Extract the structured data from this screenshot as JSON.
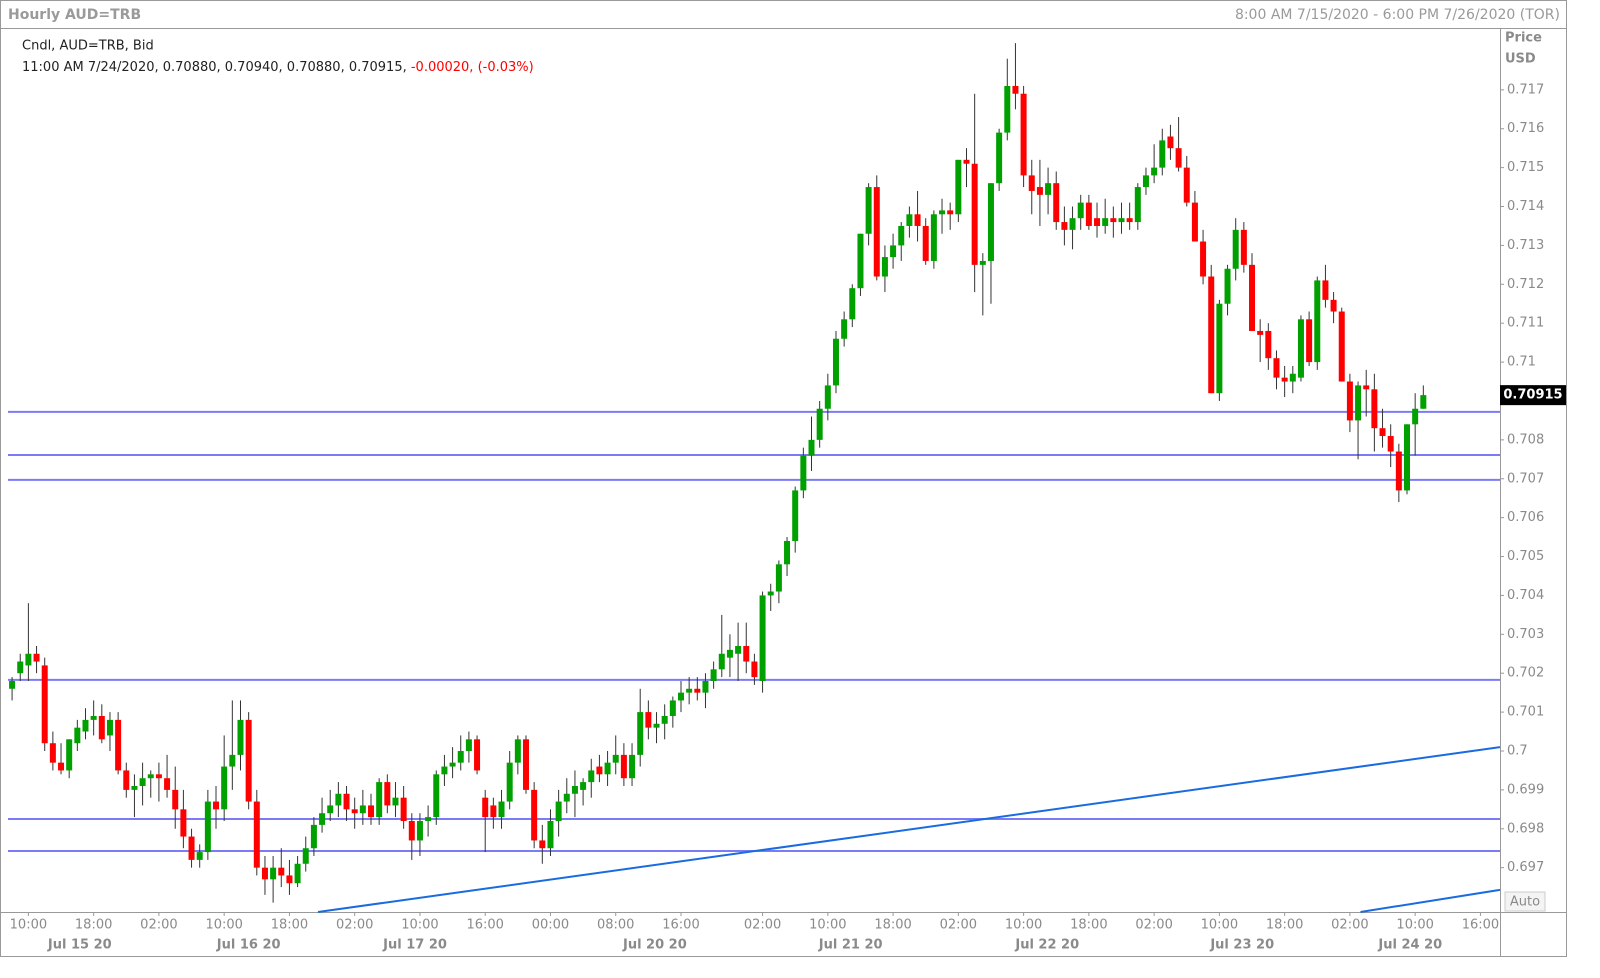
{
  "chart_data": {
    "type": "candlestick",
    "title": "Hourly AUD=TRB",
    "range_text": "8:00 AM 7/15/2020 - 6:00 PM 7/26/2020 (TOR)",
    "series_label": "Cndl, AUD=TRB, Bid",
    "info_text": "11:00 AM 7/24/2020, 0.70880, 0.70940, 0.70880, 0.70915,",
    "change_text": "-0.00020, (-0.03%)",
    "y_axis_label": [
      "Price",
      "USD"
    ],
    "auto_label": "Auto",
    "up_color": "#00a000",
    "down_color": "#ff0000",
    "line_color": "#7b7bf7",
    "trend_color": "#1a6be0",
    "xlim": [
      -0.5,
      182.4
    ],
    "ylim": [
      0.69586,
      0.71859
    ],
    "yticks": [
      0.697,
      0.698,
      0.699,
      0.7,
      0.701,
      0.702,
      0.703,
      0.704,
      0.705,
      0.706,
      0.707,
      0.708,
      0.71,
      0.711,
      0.712,
      0.713,
      0.714,
      0.715,
      0.716,
      0.717
    ],
    "current_price": 0.70915,
    "xticks": [
      {
        "value": 2,
        "label": "10:00"
      },
      {
        "value": 10,
        "label": "18:00"
      },
      {
        "value": 18,
        "label": "02:00"
      },
      {
        "value": 26,
        "label": "10:00"
      },
      {
        "value": 34,
        "label": "18:00"
      },
      {
        "value": 42,
        "label": "02:00"
      },
      {
        "value": 50,
        "label": "10:00"
      },
      {
        "value": 58,
        "label": "16:00"
      },
      {
        "value": 66,
        "label": "00:00"
      },
      {
        "value": 74,
        "label": "08:00"
      },
      {
        "value": 82,
        "label": "16:00"
      },
      {
        "value": 92,
        "label": "02:00"
      },
      {
        "value": 100,
        "label": "10:00"
      },
      {
        "value": 108,
        "label": "18:00"
      },
      {
        "value": 116,
        "label": "02:00"
      },
      {
        "value": 124,
        "label": "10:00"
      },
      {
        "value": 132,
        "label": "18:00"
      },
      {
        "value": 140,
        "label": "02:00"
      },
      {
        "value": 148,
        "label": "10:00"
      },
      {
        "value": 156,
        "label": "18:00"
      },
      {
        "value": 164,
        "label": "02:00"
      },
      {
        "value": 172,
        "label": "10:00"
      },
      {
        "value": 180,
        "label": "16:00"
      }
    ],
    "date_ticks": [
      {
        "value": 8.3,
        "label": "Jul 15 20"
      },
      {
        "value": 29,
        "label": "Jul 16 20"
      },
      {
        "value": 49.4,
        "label": "Jul 17 20"
      },
      {
        "value": 78.8,
        "label": "Jul 20 20"
      },
      {
        "value": 102.8,
        "label": "Jul 21 20"
      },
      {
        "value": 126.9,
        "label": "Jul 22 20"
      },
      {
        "value": 150.8,
        "label": "Jul 23 20"
      },
      {
        "value": 171.4,
        "label": "Jul 24 20"
      }
    ],
    "hlines": [
      0.70872,
      0.70761,
      0.70697,
      0.70183,
      0.69825,
      0.69743
    ],
    "trendlines": [
      [
        [
          37.5,
          0.69586
        ],
        [
          182.4,
          0.7001
        ]
      ],
      [
        [
          165.3,
          0.69586
        ],
        [
          182.4,
          0.69643
        ]
      ]
    ],
    "candles": [
      [
        0.7016,
        0.7019,
        0.7013,
        0.7018
      ],
      [
        0.702,
        0.7025,
        0.7018,
        0.7023
      ],
      [
        0.7022,
        0.7038,
        0.7018,
        0.7025
      ],
      [
        0.7025,
        0.7027,
        0.702,
        0.7023
      ],
      [
        0.7022,
        0.7024,
        0.7,
        0.7002
      ],
      [
        0.7002,
        0.7005,
        0.6995,
        0.6997
      ],
      [
        0.6997,
        0.7002,
        0.6994,
        0.6995
      ],
      [
        0.6995,
        0.7003,
        0.6993,
        0.7003
      ],
      [
        0.7002,
        0.7008,
        0.7,
        0.7006
      ],
      [
        0.7005,
        0.7011,
        0.7003,
        0.7008
      ],
      [
        0.7008,
        0.7013,
        0.7004,
        0.7009
      ],
      [
        0.7009,
        0.7012,
        0.7002,
        0.7003
      ],
      [
        0.7004,
        0.701,
        0.7,
        0.7008
      ],
      [
        0.7008,
        0.701,
        0.6994,
        0.6995
      ],
      [
        0.6995,
        0.6997,
        0.6988,
        0.699
      ],
      [
        0.699,
        0.6994,
        0.6983,
        0.6991
      ],
      [
        0.6991,
        0.6997,
        0.6986,
        0.6993
      ],
      [
        0.6993,
        0.6995,
        0.6988,
        0.6994
      ],
      [
        0.6994,
        0.6997,
        0.6987,
        0.6993
      ],
      [
        0.6993,
        0.6999,
        0.6988,
        0.699
      ],
      [
        0.699,
        0.6996,
        0.698,
        0.6985
      ],
      [
        0.6985,
        0.699,
        0.6975,
        0.6978
      ],
      [
        0.6978,
        0.698,
        0.697,
        0.6972
      ],
      [
        0.6972,
        0.6976,
        0.697,
        0.6974
      ],
      [
        0.6974,
        0.699,
        0.6972,
        0.6987
      ],
      [
        0.6987,
        0.6991,
        0.698,
        0.6985
      ],
      [
        0.6985,
        0.7004,
        0.6982,
        0.6996
      ],
      [
        0.6996,
        0.7013,
        0.699,
        0.6999
      ],
      [
        0.6999,
        0.7013,
        0.6995,
        0.7008
      ],
      [
        0.7008,
        0.701,
        0.6985,
        0.6987
      ],
      [
        0.6987,
        0.699,
        0.6968,
        0.697
      ],
      [
        0.697,
        0.6973,
        0.6963,
        0.6967
      ],
      [
        0.6967,
        0.6973,
        0.6961,
        0.697
      ],
      [
        0.697,
        0.6975,
        0.6965,
        0.6968
      ],
      [
        0.6968,
        0.6972,
        0.6963,
        0.6966
      ],
      [
        0.6966,
        0.6973,
        0.6965,
        0.6971
      ],
      [
        0.6971,
        0.6978,
        0.6969,
        0.6975
      ],
      [
        0.6975,
        0.6983,
        0.6973,
        0.6981
      ],
      [
        0.6981,
        0.6988,
        0.6979,
        0.6984
      ],
      [
        0.6984,
        0.699,
        0.6982,
        0.6986
      ],
      [
        0.6986,
        0.6992,
        0.6983,
        0.6989
      ],
      [
        0.6989,
        0.6991,
        0.6982,
        0.6985
      ],
      [
        0.6985,
        0.6988,
        0.698,
        0.6984
      ],
      [
        0.6984,
        0.699,
        0.6981,
        0.6986
      ],
      [
        0.6986,
        0.6989,
        0.6981,
        0.6983
      ],
      [
        0.6983,
        0.6993,
        0.6981,
        0.6992
      ],
      [
        0.6992,
        0.6994,
        0.6984,
        0.6986
      ],
      [
        0.6986,
        0.6992,
        0.6983,
        0.6988
      ],
      [
        0.6988,
        0.6991,
        0.698,
        0.6982
      ],
      [
        0.6982,
        0.6984,
        0.6972,
        0.6977
      ],
      [
        0.6977,
        0.6984,
        0.6973,
        0.6982
      ],
      [
        0.6982,
        0.6986,
        0.6978,
        0.6983
      ],
      [
        0.6983,
        0.6995,
        0.6981,
        0.6994
      ],
      [
        0.6994,
        0.6999,
        0.6991,
        0.6996
      ],
      [
        0.6996,
        0.7001,
        0.6993,
        0.6997
      ],
      [
        0.6997,
        0.7004,
        0.6995,
        0.7
      ],
      [
        0.7,
        0.7005,
        0.6997,
        0.7003
      ],
      [
        0.7003,
        0.7004,
        0.6994,
        0.6995
      ],
      [
        0.6988,
        0.699,
        0.6974,
        0.6983
      ],
      [
        0.6986,
        0.6988,
        0.698,
        0.6983
      ],
      [
        0.6983,
        0.699,
        0.698,
        0.6987
      ],
      [
        0.6987,
        0.7,
        0.6985,
        0.6997
      ],
      [
        0.6997,
        0.7004,
        0.6994,
        0.7003
      ],
      [
        0.7003,
        0.7004,
        0.6989,
        0.699
      ],
      [
        0.699,
        0.6992,
        0.6975,
        0.6977
      ],
      [
        0.6977,
        0.6981,
        0.6971,
        0.6975
      ],
      [
        0.6975,
        0.6985,
        0.6973,
        0.6982
      ],
      [
        0.6982,
        0.699,
        0.6978,
        0.6987
      ],
      [
        0.6987,
        0.6993,
        0.6984,
        0.6989
      ],
      [
        0.6989,
        0.6995,
        0.6983,
        0.6991
      ],
      [
        0.699,
        0.6993,
        0.6986,
        0.6992
      ],
      [
        0.6992,
        0.6998,
        0.6988,
        0.6995
      ],
      [
        0.6996,
        0.6999,
        0.6992,
        0.6994
      ],
      [
        0.6994,
        0.7,
        0.6991,
        0.6997
      ],
      [
        0.6997,
        0.7004,
        0.6994,
        0.6999
      ],
      [
        0.6999,
        0.7002,
        0.6991,
        0.6993
      ],
      [
        0.6993,
        0.7002,
        0.6991,
        0.6999
      ],
      [
        0.6999,
        0.7016,
        0.6996,
        0.701
      ],
      [
        0.701,
        0.7013,
        0.7003,
        0.7006
      ],
      [
        0.7006,
        0.701,
        0.7002,
        0.7007
      ],
      [
        0.7007,
        0.7012,
        0.7003,
        0.7009
      ],
      [
        0.7009,
        0.7014,
        0.7006,
        0.7013
      ],
      [
        0.7013,
        0.7018,
        0.701,
        0.7015
      ],
      [
        0.7015,
        0.7019,
        0.7012,
        0.7016
      ],
      [
        0.7016,
        0.7019,
        0.7013,
        0.7015
      ],
      [
        0.7015,
        0.702,
        0.7011,
        0.7018
      ],
      [
        0.7018,
        0.7023,
        0.7016,
        0.7021
      ],
      [
        0.7021,
        0.7035,
        0.7019,
        0.7025
      ],
      [
        0.7024,
        0.703,
        0.7019,
        0.7026
      ],
      [
        0.7025,
        0.7033,
        0.7018,
        0.7027
      ],
      [
        0.7027,
        0.7033,
        0.702,
        0.7023
      ],
      [
        0.7023,
        0.7025,
        0.7017,
        0.7019
      ],
      [
        0.7018,
        0.7041,
        0.7015,
        0.704
      ],
      [
        0.704,
        0.7043,
        0.7036,
        0.7041
      ],
      [
        0.7041,
        0.7049,
        0.7038,
        0.7048
      ],
      [
        0.7048,
        0.7055,
        0.7045,
        0.7054
      ],
      [
        0.7054,
        0.7068,
        0.7051,
        0.7067
      ],
      [
        0.7067,
        0.7078,
        0.7065,
        0.7076
      ],
      [
        0.7076,
        0.7086,
        0.7072,
        0.708
      ],
      [
        0.708,
        0.709,
        0.7078,
        0.7088
      ],
      [
        0.7088,
        0.7097,
        0.7085,
        0.7094
      ],
      [
        0.7094,
        0.7108,
        0.7092,
        0.7106
      ],
      [
        0.7106,
        0.7113,
        0.7104,
        0.7111
      ],
      [
        0.7111,
        0.712,
        0.7109,
        0.7119
      ],
      [
        0.7119,
        0.7133,
        0.7117,
        0.7133
      ],
      [
        0.7133,
        0.7146,
        0.713,
        0.7145
      ],
      [
        0.7145,
        0.7148,
        0.7121,
        0.7122
      ],
      [
        0.7122,
        0.713,
        0.7118,
        0.7127
      ],
      [
        0.7127,
        0.7133,
        0.7124,
        0.713
      ],
      [
        0.713,
        0.7136,
        0.7126,
        0.7135
      ],
      [
        0.7135,
        0.714,
        0.7132,
        0.7138
      ],
      [
        0.7138,
        0.7144,
        0.7131,
        0.7135
      ],
      [
        0.7135,
        0.7137,
        0.7125,
        0.7126
      ],
      [
        0.7126,
        0.7139,
        0.7124,
        0.7138
      ],
      [
        0.7138,
        0.7142,
        0.7133,
        0.7139
      ],
      [
        0.7139,
        0.7141,
        0.7134,
        0.7138
      ],
      [
        0.7138,
        0.7152,
        0.7136,
        0.7152
      ],
      [
        0.7152,
        0.7155,
        0.7145,
        0.7151
      ],
      [
        0.7151,
        0.7169,
        0.7118,
        0.7125
      ],
      [
        0.7125,
        0.7128,
        0.7112,
        0.7126
      ],
      [
        0.7126,
        0.7146,
        0.7115,
        0.7146
      ],
      [
        0.7146,
        0.716,
        0.7144,
        0.7159
      ],
      [
        0.7159,
        0.7178,
        0.7157,
        0.7171
      ],
      [
        0.7171,
        0.7182,
        0.7165,
        0.7169
      ],
      [
        0.7169,
        0.7171,
        0.7145,
        0.7148
      ],
      [
        0.7148,
        0.7152,
        0.7138,
        0.7144
      ],
      [
        0.7145,
        0.7152,
        0.7135,
        0.7143
      ],
      [
        0.7143,
        0.715,
        0.7138,
        0.7146
      ],
      [
        0.7146,
        0.7149,
        0.7134,
        0.7136
      ],
      [
        0.7136,
        0.714,
        0.713,
        0.7134
      ],
      [
        0.7134,
        0.714,
        0.7129,
        0.7137
      ],
      [
        0.7137,
        0.7143,
        0.7134,
        0.7141
      ],
      [
        0.7141,
        0.7143,
        0.7134,
        0.7135
      ],
      [
        0.7137,
        0.7141,
        0.7132,
        0.7135
      ],
      [
        0.7135,
        0.7142,
        0.7133,
        0.7137
      ],
      [
        0.7137,
        0.714,
        0.7132,
        0.7136
      ],
      [
        0.7136,
        0.7141,
        0.7133,
        0.7137
      ],
      [
        0.7137,
        0.7141,
        0.7134,
        0.7136
      ],
      [
        0.7136,
        0.7146,
        0.7134,
        0.7145
      ],
      [
        0.7145,
        0.715,
        0.7143,
        0.7148
      ],
      [
        0.7148,
        0.7156,
        0.7146,
        0.715
      ],
      [
        0.715,
        0.716,
        0.7148,
        0.7157
      ],
      [
        0.7158,
        0.7161,
        0.7152,
        0.7155
      ],
      [
        0.7155,
        0.7163,
        0.7149,
        0.715
      ],
      [
        0.715,
        0.7153,
        0.714,
        0.7141
      ],
      [
        0.7141,
        0.7144,
        0.7131,
        0.7131
      ],
      [
        0.7131,
        0.7134,
        0.712,
        0.7122
      ],
      [
        0.7122,
        0.7125,
        0.7092,
        0.7092
      ],
      [
        0.7092,
        0.7116,
        0.709,
        0.7115
      ],
      [
        0.7115,
        0.7125,
        0.7112,
        0.7124
      ],
      [
        0.7124,
        0.7137,
        0.7121,
        0.7134
      ],
      [
        0.7134,
        0.7136,
        0.7123,
        0.7125
      ],
      [
        0.7125,
        0.7128,
        0.7108,
        0.7108
      ],
      [
        0.7108,
        0.7111,
        0.71,
        0.7107
      ],
      [
        0.7108,
        0.711,
        0.7098,
        0.7101
      ],
      [
        0.7101,
        0.7103,
        0.7093,
        0.7096
      ],
      [
        0.7096,
        0.7099,
        0.7091,
        0.7095
      ],
      [
        0.7095,
        0.7099,
        0.7092,
        0.7097
      ],
      [
        0.7096,
        0.7112,
        0.7095,
        0.7111
      ],
      [
        0.7111,
        0.7113,
        0.7099,
        0.71
      ],
      [
        0.71,
        0.7122,
        0.7098,
        0.7121
      ],
      [
        0.7121,
        0.7125,
        0.7114,
        0.7116
      ],
      [
        0.7116,
        0.7118,
        0.711,
        0.7113
      ],
      [
        0.7113,
        0.7114,
        0.7095,
        0.7095
      ],
      [
        0.7095,
        0.7097,
        0.7082,
        0.7085
      ],
      [
        0.7085,
        0.7095,
        0.7075,
        0.7094
      ],
      [
        0.7094,
        0.7098,
        0.7086,
        0.7093
      ],
      [
        0.7093,
        0.7097,
        0.7077,
        0.7083
      ],
      [
        0.7083,
        0.7088,
        0.7078,
        0.7081
      ],
      [
        0.7081,
        0.7084,
        0.7073,
        0.7077
      ],
      [
        0.7077,
        0.7079,
        0.7064,
        0.7067
      ],
      [
        0.7067,
        0.7084,
        0.7066,
        0.7084
      ],
      [
        0.7084,
        0.7092,
        0.7076,
        0.7088
      ],
      [
        0.7088,
        0.7094,
        0.7088,
        0.70915
      ]
    ]
  }
}
